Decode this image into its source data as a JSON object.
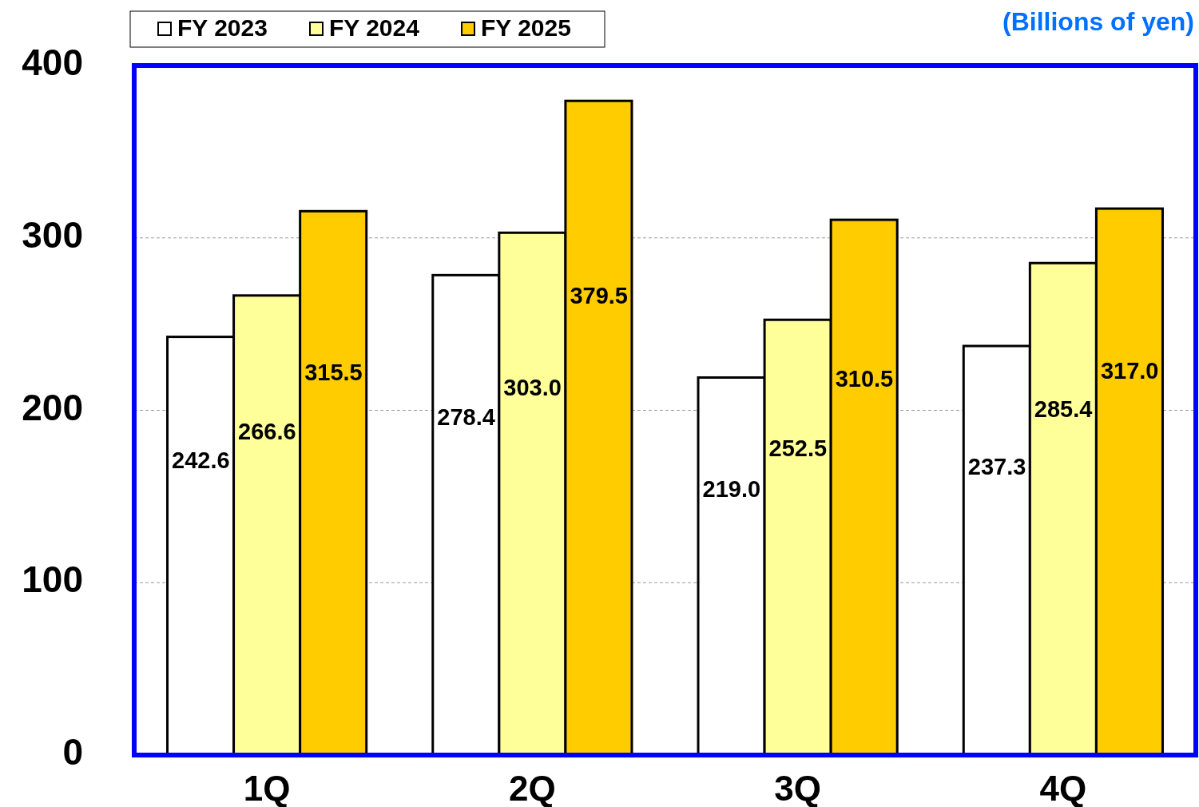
{
  "chart_data": {
    "type": "bar",
    "categories": [
      "1Q",
      "2Q",
      "3Q",
      "4Q"
    ],
    "series": [
      {
        "name": "FY 2023",
        "color": "#ffffff",
        "values": [
          242.6,
          278.4,
          219.0,
          237.3
        ]
      },
      {
        "name": "FY 2024",
        "color": "#ffff99",
        "values": [
          266.6,
          303.0,
          252.5,
          285.4
        ]
      },
      {
        "name": "FY 2025",
        "color": "#ffcc00",
        "values": [
          315.5,
          379.5,
          310.5,
          317.0
        ]
      }
    ],
    "value_labels": [
      [
        "242.6",
        "278.4",
        "219.0",
        "237.3"
      ],
      [
        "266.6",
        "303.0",
        "252.5",
        "285.4"
      ],
      [
        "315.5",
        "379.5",
        "310.5",
        "317.0"
      ]
    ],
    "ylim": [
      0,
      400
    ],
    "yticks": [
      0,
      100,
      200,
      300,
      400
    ],
    "grid": "y",
    "legend": "top left",
    "annotations": [
      "(Billions of yen)"
    ]
  }
}
